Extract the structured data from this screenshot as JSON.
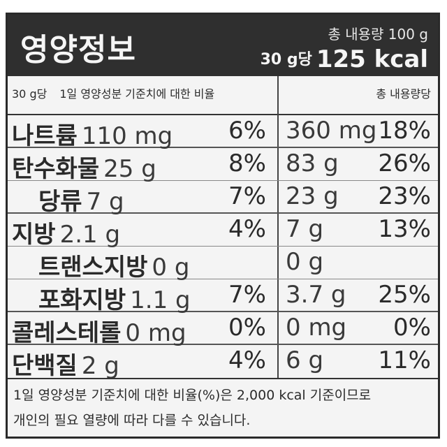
{
  "header": {
    "title": "영양정보",
    "total_content": "총 내용량 100 g",
    "per_serving": "30 g당",
    "calories": "125 kcal"
  },
  "column_header": {
    "per_serving": "30 g당",
    "daily_value_label": "1일 영양성분 기준치에 대한 비율",
    "per_total": "총 내용량당"
  },
  "nutrients": [
    {
      "name": "나트륨",
      "amount": "110 mg",
      "pct": "6%",
      "total_amount": "360 mg",
      "total_pct": "18%"
    },
    {
      "name": "탄수화물",
      "amount": "25 g",
      "pct": "8%",
      "total_amount": "83 g",
      "total_pct": "26%"
    },
    {
      "name": "당류",
      "amount": "7 g",
      "pct": "7%",
      "total_amount": "23 g",
      "total_pct": "23%"
    },
    {
      "name": "지방",
      "amount": "2.1 g",
      "pct": "4%",
      "total_amount": "7 g",
      "total_pct": "13%"
    },
    {
      "name": "트랜스지방",
      "amount": "0 g",
      "pct": "",
      "total_amount": "0 g",
      "total_pct": ""
    },
    {
      "name": "포화지방",
      "amount": "1.1 g",
      "pct": "7%",
      "total_amount": "3.7 g",
      "total_pct": "25%"
    },
    {
      "name": "콜레스테롤",
      "amount": "0 mg",
      "pct": "0%",
      "total_amount": "0 mg",
      "total_pct": "0%"
    },
    {
      "name": "단백질",
      "amount": "2 g",
      "pct": "4%",
      "total_amount": "6 g",
      "total_pct": "11%"
    }
  ],
  "footer": {
    "line1": "1일 영양성분 기준치에 대한 비율(%)은 2,000 kcal 기준이므로",
    "line2": "개인의 필요 열량에 따라 다를 수 있습니다."
  }
}
